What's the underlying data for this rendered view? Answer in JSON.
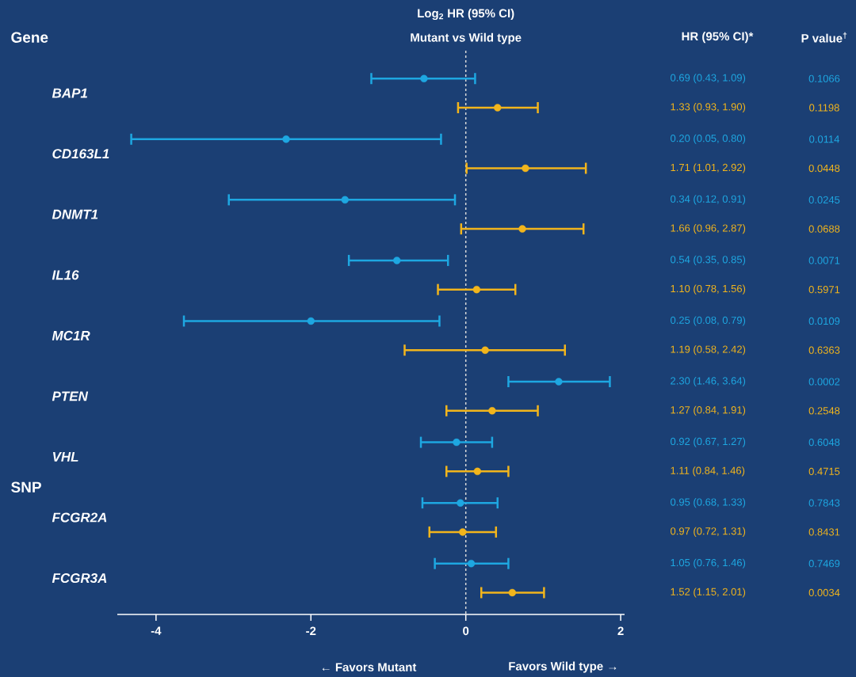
{
  "chart_data": {
    "type": "scatter",
    "orientation": "horizontal",
    "title": "Log$_{2}$ HR (95% CI)",
    "subtitle": "Mutant vs Wild type",
    "categories": [
      "BAP1",
      "CD163L1",
      "DNMT1",
      "IL16",
      "MC1R",
      "PTEN",
      "VHL",
      "FCGR2A",
      "FCGR3A"
    ],
    "series": [
      {
        "color": "#1ea7e1",
        "values": [
          -0.54,
          -2.32,
          -1.56,
          -0.89,
          -2.0,
          1.2,
          -0.12,
          -0.07,
          0.07
        ],
        "errors": [
          [
            -1.22,
            0.12
          ],
          [
            -4.32,
            -0.32
          ],
          [
            -3.06,
            -0.14
          ],
          [
            -1.51,
            -0.23
          ],
          [
            -3.64,
            -0.34
          ],
          [
            0.55,
            1.86
          ],
          [
            -0.58,
            0.34
          ],
          [
            -0.56,
            0.41
          ],
          [
            -0.4,
            0.55
          ]
        ]
      },
      {
        "color": "#f2b51c",
        "values": [
          0.41,
          0.77,
          0.73,
          0.14,
          0.25,
          0.34,
          0.15,
          -0.04,
          0.6
        ],
        "errors": [
          [
            -0.1,
            0.93
          ],
          [
            0.01,
            1.55
          ],
          [
            -0.06,
            1.52
          ],
          [
            -0.36,
            0.64
          ],
          [
            -0.79,
            1.28
          ],
          [
            -0.25,
            0.93
          ],
          [
            -0.25,
            0.55
          ],
          [
            -0.47,
            0.39
          ],
          [
            0.2,
            1.01
          ]
        ]
      }
    ],
    "xlim": [
      -4.5,
      2.05
    ],
    "xticks": [
      -4,
      -2,
      0,
      2
    ],
    "marker": "circle",
    "ref_lines": [
      {
        "axis": "x",
        "value": 0,
        "color": "#d9d9d9",
        "line_style": "dashed"
      }
    ],
    "annotations": [
      "Gene",
      "SNP",
      "HR (95% CI)*",
      "P value$^{†}$",
      "← Favors Mutant",
      "Favors Wild type →",
      "0.69 (0.43, 1.09)",
      "0.1066",
      "1.33 (0.93, 1.90)",
      "0.1198",
      "0.20 (0.05, 0.80)",
      "0.0114",
      "1.71 (1.01, 2.92)",
      "0.0448",
      "0.34 (0.12, 0.91)",
      "0.0245",
      "1.66 (0.96, 2.87)",
      "0.0688",
      "0.54 (0.35, 0.85)",
      "0.0071",
      "1.10 (0.78, 1.56)",
      "0.5971",
      "0.25 (0.08, 0.79)",
      "0.0109",
      "1.19 (0.58, 2.42)",
      "0.6363",
      "2.30 (1.46, 3.64)",
      "0.0002",
      "1.27 (0.84, 1.91)",
      "0.2548",
      "0.92 (0.67, 1.27)",
      "0.6048",
      "1.11 (0.84, 1.46)",
      "0.4715",
      "0.95 (0.68, 1.33)",
      "0.7843",
      "0.97 (0.72, 1.31)",
      "0.8431",
      "1.05 (0.76, 1.46)",
      "0.7469",
      "1.52 (1.15, 2.01)",
      "0.0034"
    ]
  }
}
